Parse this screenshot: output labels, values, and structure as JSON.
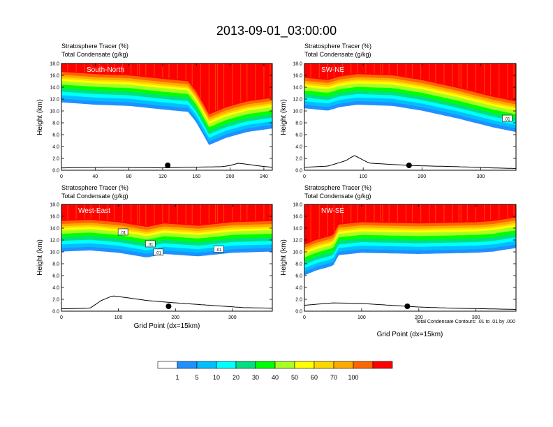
{
  "chart_data": {
    "type": "heatmap",
    "title": "2013-09-01_03:00:00",
    "colorbar": {
      "colors": [
        "#ffffff",
        "#1e90ff",
        "#00bfff",
        "#00ffff",
        "#00e080",
        "#00ff00",
        "#aaff22",
        "#ffff00",
        "#ffd700",
        "#ffaa00",
        "#ff6600",
        "#ff0000"
      ],
      "labels": [
        "1",
        "5",
        "10",
        "20",
        "30",
        "40",
        "50",
        "60",
        "70",
        "100"
      ]
    },
    "footnote": "Total Condensate Contours: .01 to .01 by .000",
    "panels": [
      {
        "name": "South-North",
        "header1": "Stratosphere Tracer   (%)",
        "header2": "Total Condensate   (g/kg)",
        "label": "South-North",
        "ylabel": "Height (km)",
        "xlabel": "",
        "xmax": 250,
        "xticks": [
          0,
          40,
          80,
          120,
          160,
          200,
          240
        ],
        "yticks": [
          "0.0",
          "2.0",
          "4.0",
          "6.0",
          "8.0",
          "10.0",
          "12.0",
          "14.0",
          "16.0",
          "18.0"
        ],
        "ymax": 18,
        "marker_x": 126,
        "contour_labels": [],
        "tracer_base": [
          [
            0,
            15.2
          ],
          [
            40,
            14.8
          ],
          [
            80,
            14.6
          ],
          [
            120,
            14.0
          ],
          [
            150,
            13.6
          ],
          [
            160,
            11.8
          ],
          [
            175,
            8.0
          ],
          [
            195,
            9.2
          ],
          [
            220,
            10.2
          ],
          [
            250,
            10.8
          ]
        ],
        "terrain": [
          [
            0,
            0.4
          ],
          [
            60,
            0.5
          ],
          [
            120,
            0.4
          ],
          [
            150,
            0.5
          ],
          [
            190,
            0.6
          ],
          [
            200,
            0.8
          ],
          [
            210,
            1.2
          ],
          [
            230,
            0.8
          ],
          [
            250,
            0.5
          ]
        ]
      },
      {
        "name": "SW-NE",
        "header1": "Stratosphere Tracer   (%)",
        "header2": "Total Condensate   (g/kg)",
        "label": "SW-NE",
        "ylabel": "Height (km)",
        "xlabel": "",
        "xmax": 360,
        "xticks": [
          0,
          100,
          200,
          300
        ],
        "yticks": [
          "0.0",
          "2.0",
          "4.0",
          "6.0",
          "8.0",
          "10.0",
          "12.0",
          "14.0",
          "16.0",
          "18.0"
        ],
        "ymax": 18,
        "marker_x": 178,
        "contour_labels": [
          {
            "x": 345,
            "y": 8.7,
            "text": ".01"
          }
        ],
        "tracer_base": [
          [
            0,
            14.2
          ],
          [
            40,
            13.8
          ],
          [
            60,
            14.4
          ],
          [
            90,
            14.8
          ],
          [
            150,
            14.6
          ],
          [
            200,
            13.8
          ],
          [
            260,
            12.5
          ],
          [
            320,
            11.0
          ],
          [
            360,
            10.2
          ]
        ],
        "terrain": [
          [
            0,
            0.5
          ],
          [
            40,
            0.7
          ],
          [
            70,
            1.6
          ],
          [
            85,
            2.5
          ],
          [
            110,
            1.2
          ],
          [
            180,
            0.8
          ],
          [
            260,
            0.6
          ],
          [
            320,
            0.4
          ],
          [
            360,
            0.3
          ]
        ]
      },
      {
        "name": "West-East",
        "header1": "Stratosphere Tracer   (%)",
        "header2": "Total Condensate   (g/kg)",
        "label": "West-East",
        "ylabel": "Height (km)",
        "xlabel": "Grid Point (dx=15km)",
        "xmax": 370,
        "xticks": [
          0,
          100,
          200,
          300
        ],
        "yticks": [
          "0.0",
          "2.0",
          "4.0",
          "6.0",
          "8.0",
          "10.0",
          "12.0",
          "14.0",
          "16.0",
          "18.0"
        ],
        "ymax": 18,
        "marker_x": 188,
        "contour_labels": [
          {
            "x": 108,
            "y": 13.3,
            "text": ".01"
          },
          {
            "x": 156,
            "y": 11.3,
            "text": ".01"
          },
          {
            "x": 170,
            "y": 9.9,
            "text": ".01"
          },
          {
            "x": 276,
            "y": 10.4,
            "text": ".01"
          }
        ],
        "tracer_base": [
          [
            0,
            13.8
          ],
          [
            50,
            14.0
          ],
          [
            100,
            13.6
          ],
          [
            150,
            12.8
          ],
          [
            180,
            13.4
          ],
          [
            240,
            13.0
          ],
          [
            300,
            13.6
          ],
          [
            370,
            13.8
          ]
        ],
        "terrain": [
          [
            0,
            0.4
          ],
          [
            50,
            0.5
          ],
          [
            70,
            1.8
          ],
          [
            90,
            2.6
          ],
          [
            120,
            2.2
          ],
          [
            150,
            1.8
          ],
          [
            200,
            1.4
          ],
          [
            260,
            1.0
          ],
          [
            320,
            0.6
          ],
          [
            370,
            0.5
          ]
        ]
      },
      {
        "name": "NW-SE",
        "header1": "Stratosphere Tracer   (%)",
        "header2": "Total Condensate   (g/kg)",
        "label": "NW-SE",
        "ylabel": "Height (km)",
        "xlabel": "Grid Point (dx=15km)",
        "xmax": 370,
        "xticks": [
          0,
          100,
          200,
          300
        ],
        "yticks": [
          "0.0",
          "2.0",
          "4.0",
          "6.0",
          "8.0",
          "10.0",
          "12.0",
          "14.0",
          "16.0",
          "18.0"
        ],
        "ymax": 18,
        "marker_x": 180,
        "contour_labels": [],
        "tracer_base": [
          [
            0,
            9.8
          ],
          [
            20,
            10.6
          ],
          [
            50,
            11.4
          ],
          [
            60,
            13.2
          ],
          [
            100,
            13.6
          ],
          [
            200,
            13.4
          ],
          [
            300,
            13.6
          ],
          [
            330,
            13.8
          ],
          [
            370,
            14.4
          ]
        ],
        "terrain": [
          [
            0,
            1.0
          ],
          [
            50,
            1.4
          ],
          [
            100,
            1.3
          ],
          [
            150,
            1.0
          ],
          [
            200,
            0.7
          ],
          [
            260,
            0.5
          ],
          [
            320,
            0.4
          ],
          [
            370,
            0.3
          ]
        ]
      }
    ]
  }
}
